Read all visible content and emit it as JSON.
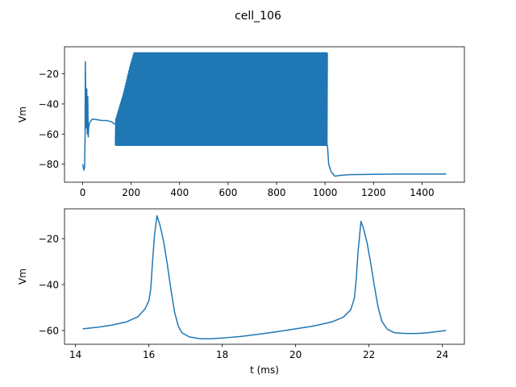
{
  "figure": {
    "suptitle": "cell_106"
  },
  "chart_data": [
    {
      "type": "line",
      "title": "",
      "xlabel": "",
      "ylabel": "Vm",
      "xlim": [
        -75,
        1575
      ],
      "ylim": [
        -92,
        -2
      ],
      "xticks": [
        0,
        200,
        400,
        600,
        800,
        1000,
        1200,
        1400
      ],
      "yticks": [
        -80,
        -60,
        -40,
        -20
      ],
      "grid": false,
      "series": [
        {
          "color": "#1f77b4",
          "segments": [
            {
              "kind": "line",
              "points": [
                [
                  0,
                  -80
                ],
                [
                  5,
                  -84
                ],
                [
                  8,
                  -82
                ],
                [
                  10,
                  -60
                ],
                [
                  11,
                  -12
                ],
                [
                  13,
                  -40
                ],
                [
                  15,
                  -56
                ],
                [
                  17,
                  -30
                ],
                [
                  19,
                  -60
                ],
                [
                  21,
                  -35
                ],
                [
                  23,
                  -62
                ],
                [
                  25,
                  -55
                ],
                [
                  30,
                  -52
                ],
                [
                  40,
                  -50
                ],
                [
                  60,
                  -50.5
                ],
                [
                  80,
                  -51
                ],
                [
                  100,
                  -51
                ],
                [
                  120,
                  -52
                ],
                [
                  130,
                  -53
                ],
                [
                  140,
                  -54
                ],
                [
                  150,
                  -56
                ],
                [
                  160,
                  -58
                ],
                [
                  175,
                  -61
                ],
                [
                  190,
                  -64
                ],
                [
                  205,
                  -67
                ],
                [
                  215,
                  -67.5
                ],
                [
                  1010,
                  -67.5
                ],
                [
                  1015,
                  -80
                ],
                [
                  1025,
                  -85
                ],
                [
                  1040,
                  -88
                ],
                [
                  1060,
                  -87.5
                ],
                [
                  1100,
                  -87
                ],
                [
                  1200,
                  -86.8
                ],
                [
                  1300,
                  -86.6
                ],
                [
                  1400,
                  -86.6
                ],
                [
                  1500,
                  -86.6
                ]
              ]
            },
            {
              "kind": "oscillation",
              "from": 135,
              "to": 1008,
              "period": 3.0,
              "low": -67.5,
              "high_ramp": [
                [
                  135,
                  -50
                ],
                [
                  150,
                  -42
                ],
                [
                  165,
                  -34
                ],
                [
                  180,
                  -24
                ],
                [
                  195,
                  -14
                ],
                [
                  210,
                  -6
                ],
                [
                  1008,
                  -6
                ]
              ]
            }
          ]
        }
      ]
    },
    {
      "type": "line",
      "title": "",
      "xlabel": "t (ms)",
      "ylabel": "Vm",
      "xlim": [
        13.7,
        24.6
      ],
      "ylim": [
        -66,
        -7
      ],
      "xticks": [
        14,
        16,
        18,
        20,
        22,
        24
      ],
      "yticks": [
        -60,
        -40,
        -20
      ],
      "grid": false,
      "series": [
        {
          "color": "#1f77b4",
          "points": [
            [
              14.2,
              -59.3
            ],
            [
              14.6,
              -58.6
            ],
            [
              15.0,
              -57.6
            ],
            [
              15.4,
              -56.2
            ],
            [
              15.7,
              -54
            ],
            [
              15.9,
              -50.5
            ],
            [
              16.0,
              -47
            ],
            [
              16.05,
              -42
            ],
            [
              16.1,
              -30
            ],
            [
              16.15,
              -19
            ],
            [
              16.22,
              -10
            ],
            [
              16.3,
              -14
            ],
            [
              16.4,
              -21
            ],
            [
              16.5,
              -31
            ],
            [
              16.6,
              -42
            ],
            [
              16.7,
              -52
            ],
            [
              16.8,
              -58
            ],
            [
              16.9,
              -61
            ],
            [
              17.1,
              -62.8
            ],
            [
              17.4,
              -63.6
            ],
            [
              17.7,
              -63.6
            ],
            [
              18.0,
              -63.3
            ],
            [
              18.5,
              -62.6
            ],
            [
              19.0,
              -61.6
            ],
            [
              19.5,
              -60.5
            ],
            [
              20.0,
              -59.3
            ],
            [
              20.5,
              -58.0
            ],
            [
              21.0,
              -56.2
            ],
            [
              21.3,
              -54.2
            ],
            [
              21.5,
              -51
            ],
            [
              21.6,
              -46
            ],
            [
              21.65,
              -38
            ],
            [
              21.7,
              -26
            ],
            [
              21.78,
              -12.5
            ],
            [
              21.85,
              -15.5
            ],
            [
              21.95,
              -22
            ],
            [
              22.05,
              -31
            ],
            [
              22.15,
              -41
            ],
            [
              22.25,
              -50
            ],
            [
              22.35,
              -56
            ],
            [
              22.5,
              -59.5
            ],
            [
              22.7,
              -61
            ],
            [
              23.0,
              -61.3
            ],
            [
              23.3,
              -61.3
            ],
            [
              23.6,
              -61
            ],
            [
              24.1,
              -60
            ]
          ]
        }
      ]
    }
  ]
}
